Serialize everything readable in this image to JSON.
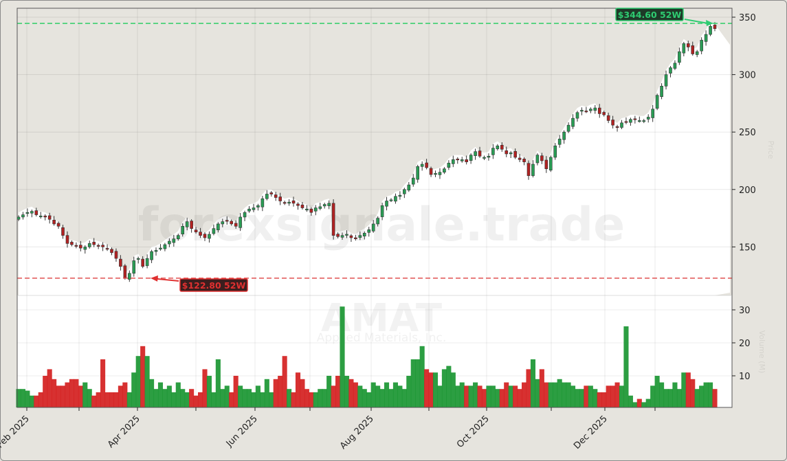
{
  "chart_data": {
    "type": "candlestick",
    "ticker": "AMAT",
    "company": "Applied Materials, Inc.",
    "watermark": "forexsignale.trade",
    "x_tick_labels": [
      "Feb 2025",
      "Apr 2025",
      "Jun 2025",
      "Aug 2025",
      "Oct 2025",
      "Dec 2025"
    ],
    "price_axis": {
      "ticks": [
        150,
        200,
        250,
        300,
        350
      ],
      "range": [
        115,
        357
      ],
      "label": "Price"
    },
    "volume_axis": {
      "ticks": [
        10,
        20,
        30
      ],
      "range": [
        0,
        34
      ],
      "label": "Volume (M)"
    },
    "high_52w": {
      "value": 344.6,
      "label": "$344.60 52W",
      "color": "#2ecc71"
    },
    "low_52w": {
      "value": 122.8,
      "label": "$122.80 52W",
      "color": "#e03030"
    },
    "colors": {
      "up": "#1a9632",
      "down": "#d42020",
      "panel_bg": "#e6e4de",
      "plot_below": "#ffffff",
      "grid": "#d8d8d8"
    },
    "close_path": [
      176,
      178,
      180,
      181,
      178,
      177,
      176,
      174,
      170,
      168,
      160,
      153,
      152,
      151,
      149,
      150,
      153,
      152,
      151,
      150,
      148,
      145,
      140,
      133,
      123,
      127,
      138,
      140,
      133,
      140,
      146,
      147,
      149,
      152,
      155,
      157,
      160,
      168,
      172,
      166,
      163,
      160,
      158,
      161,
      166,
      170,
      172,
      173,
      170,
      168,
      176,
      180,
      183,
      184,
      186,
      192,
      196,
      196,
      193,
      190,
      188,
      189,
      188,
      186,
      184,
      183,
      180,
      184,
      185,
      187,
      188,
      160,
      159,
      160,
      161,
      158,
      157,
      160,
      162,
      165,
      170,
      175,
      186,
      190,
      191,
      194,
      195,
      200,
      204,
      210,
      220,
      222,
      219,
      213,
      214,
      215,
      218,
      223,
      226,
      226,
      226,
      224,
      230,
      233,
      229,
      228,
      229,
      236,
      238,
      235,
      231,
      232,
      228,
      226,
      224,
      212,
      222,
      230,
      225,
      218,
      228,
      238,
      244,
      250,
      256,
      262,
      267,
      269,
      268,
      270,
      271,
      266,
      265,
      260,
      256,
      254,
      258,
      259,
      261,
      261,
      260,
      260,
      263,
      270,
      282,
      290,
      300,
      306,
      310,
      320,
      327,
      324,
      318,
      320,
      330,
      335,
      342,
      340
    ],
    "volume_path": [
      6,
      6,
      5.5,
      4,
      4,
      5,
      10,
      12,
      9,
      7,
      7,
      8,
      9,
      9,
      7,
      8,
      6,
      4,
      5,
      15,
      5,
      5,
      5,
      7,
      8,
      5,
      11,
      16,
      19,
      16,
      9,
      6,
      8,
      6,
      7,
      5,
      8,
      6,
      5,
      6,
      4,
      5,
      12,
      10,
      5,
      15,
      6,
      7,
      5,
      10,
      7,
      6,
      6,
      5,
      7,
      5,
      9,
      5,
      9,
      10,
      16,
      6,
      5,
      11,
      9,
      6,
      5,
      5,
      6,
      6,
      10,
      7,
      10,
      31,
      10,
      9,
      8,
      7,
      6,
      5,
      8,
      7,
      6,
      8,
      6,
      8,
      7,
      6,
      10,
      15,
      15,
      19,
      12,
      11,
      11,
      7,
      12,
      13,
      11,
      7,
      8,
      7,
      7,
      8,
      7,
      6,
      7,
      7,
      6,
      6,
      8,
      7,
      7,
      6,
      8,
      12,
      15,
      9,
      12,
      8,
      8,
      8,
      9,
      8,
      8,
      7,
      6,
      6,
      7,
      7,
      6,
      5,
      5,
      7,
      7,
      8,
      7,
      25,
      4,
      2,
      3,
      2,
      3,
      7,
      10,
      8,
      6,
      6,
      8,
      6,
      11,
      11,
      9,
      6,
      7,
      8,
      8,
      6
    ]
  }
}
